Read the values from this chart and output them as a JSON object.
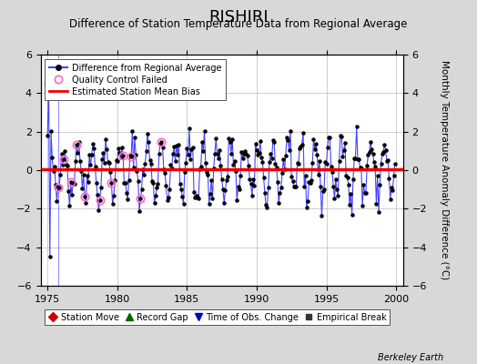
{
  "title": "RISHIRI",
  "subtitle": "Difference of Station Temperature Data from Regional Average",
  "ylabel": "Monthly Temperature Anomaly Difference (°C)",
  "xlim": [
    1974.5,
    2000.5
  ],
  "ylim": [
    -6,
    6
  ],
  "yticks": [
    -6,
    -4,
    -2,
    0,
    2,
    4,
    6
  ],
  "xticks": [
    1975,
    1980,
    1985,
    1990,
    1995,
    2000
  ],
  "bias_value": 0.05,
  "background_color": "#d8d8d8",
  "plot_bg_color": "#ffffff",
  "line_color": "#4444ff",
  "bias_color": "#ee0000",
  "qc_color": "#ff66cc",
  "footer": "Berkeley Earth",
  "seed": 42,
  "station_move_year": 1975.75,
  "num_months": 300,
  "start_year": 1975.0
}
